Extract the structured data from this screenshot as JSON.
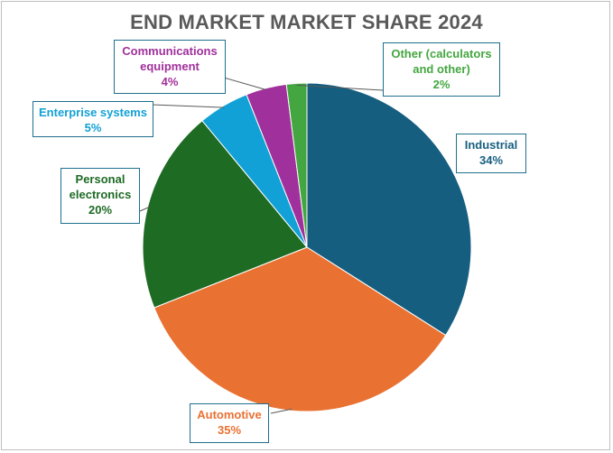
{
  "chart_data": {
    "type": "pie",
    "title": "END MARKET MARKET SHARE 2024",
    "slices": [
      {
        "label": "Industrial",
        "value": 34,
        "display": "34%",
        "color": "#155e80"
      },
      {
        "label": "Automotive",
        "value": 35,
        "display": "35%",
        "color": "#e97132"
      },
      {
        "label": "Personal electronics",
        "value": 20,
        "display": "20%",
        "color": "#1e6b24"
      },
      {
        "label": "Enterprise systems",
        "value": 5,
        "display": "5%",
        "color": "#12a1d6"
      },
      {
        "label": "Communications equipment",
        "value": 4,
        "display": "4%",
        "color": "#a0309b"
      },
      {
        "label": "Other (calculators and other)",
        "value": 2,
        "display": "2%",
        "color": "#44a640"
      }
    ],
    "legend": "none",
    "start_angle": "12 o'clock",
    "direction": "clockwise"
  }
}
